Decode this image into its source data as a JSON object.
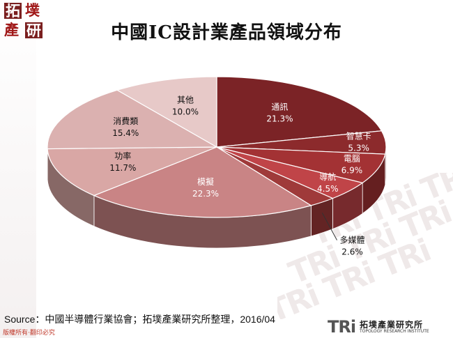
{
  "header": {
    "logo_chars": [
      "拓",
      "墣",
      "產",
      "研"
    ],
    "title": "中國IC設計業產品領域分布"
  },
  "watermark": {
    "text": "TRi TRi TRi"
  },
  "footer": {
    "source": "Source：中國半導體行業協會；拓墣產業研究所整理，2016/04",
    "copyright": "版權所有‧翻印必究",
    "brand_mark": "TRi",
    "brand_cn": "拓墣產業研究所",
    "brand_en": "TOPOLOGY RESEARCH INSTITUTE"
  },
  "chart_data": {
    "type": "pie",
    "title": "中國IC設計業產品領域分布",
    "style": "3d",
    "slices": [
      {
        "label": "通訊",
        "value": 21.3,
        "display": "21.3%",
        "color": "#7b2326"
      },
      {
        "label": "智慧卡",
        "value": 5.3,
        "display": "5.3%",
        "color": "#8c2a2c"
      },
      {
        "label": "電腦",
        "value": 6.9,
        "display": "6.9%",
        "color": "#a33234"
      },
      {
        "label": "導航",
        "value": 4.5,
        "display": "4.5%",
        "color": "#c04448"
      },
      {
        "label": "多媒體",
        "value": 2.6,
        "display": "2.6%",
        "color": "#9f3a3a"
      },
      {
        "label": "模擬",
        "value": 22.3,
        "display": "22.3%",
        "color": "#c98485"
      },
      {
        "label": "功率",
        "value": 11.7,
        "display": "11.7%",
        "color": "#d9a7a5"
      },
      {
        "label": "消費類",
        "value": 15.4,
        "display": "15.4%",
        "color": "#dbb1b0"
      },
      {
        "label": "其他",
        "value": 10.0,
        "display": "10.0%",
        "color": "#e7c9c8"
      }
    ]
  }
}
